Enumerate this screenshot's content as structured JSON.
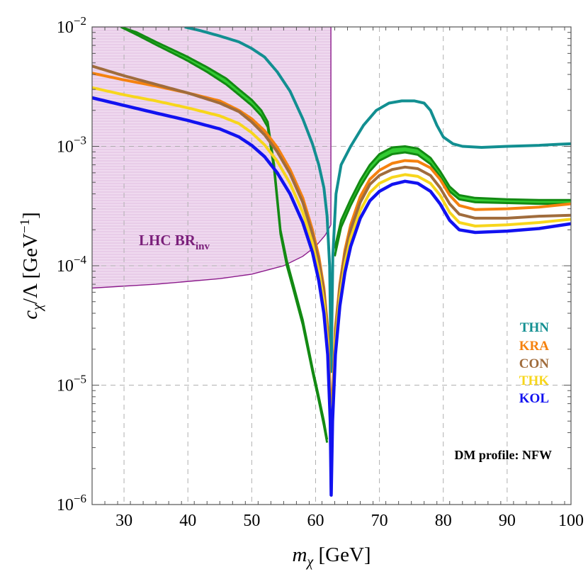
{
  "chart_data": {
    "type": "line",
    "title": "",
    "xlabel": "mχ [GeV]",
    "xlabel_parts": {
      "base": "m",
      "sub": "χ",
      "unit": " [GeV]"
    },
    "ylabel": "cχ/Λ [GeV⁻¹]",
    "ylabel_parts": {
      "base": "c",
      "sub": "χ",
      "rest": "/Λ [GeV",
      "sup": "−1",
      "close": "]"
    },
    "xlim": [
      25,
      100
    ],
    "ylim": [
      1e-06,
      0.01
    ],
    "yscale": "log",
    "grid": true,
    "x_ticks": [
      30,
      40,
      50,
      60,
      70,
      80,
      90,
      100
    ],
    "x_tick_labels": [
      "30",
      "40",
      "50",
      "60",
      "70",
      "80",
      "90",
      "100"
    ],
    "y_ticks": [
      {
        "value": 1e-06,
        "base": "10",
        "exp": "−6"
      },
      {
        "value": 1e-05,
        "base": "10",
        "exp": "−5"
      },
      {
        "value": 0.0001,
        "base": "10",
        "exp": "−4"
      },
      {
        "value": 0.001,
        "base": "10",
        "exp": "−3"
      },
      {
        "value": 0.01,
        "base": "10",
        "exp": "−2"
      }
    ],
    "excluded_region": {
      "label_base": "LHC BR",
      "label_sub": "inv",
      "color": "#8b1a8b",
      "fill": "#e8cfe8",
      "boundary_x": 62.4,
      "lower_boundary": [
        [
          25,
          6.5e-05
        ],
        [
          35,
          7e-05
        ],
        [
          45,
          7.8e-05
        ],
        [
          50,
          8.5e-05
        ],
        [
          55,
          0.0001
        ],
        [
          58,
          0.00012
        ],
        [
          60,
          0.000145
        ],
        [
          61.5,
          0.00018
        ],
        [
          62.4,
          0.00022
        ]
      ]
    },
    "series": [
      {
        "name": "THN",
        "color": "#128f91",
        "width": 4,
        "points": [
          [
            39.5,
            0.01
          ],
          [
            42,
            0.0093
          ],
          [
            45,
            0.0084
          ],
          [
            48,
            0.0075
          ],
          [
            50,
            0.0066
          ],
          [
            52,
            0.0056
          ],
          [
            54,
            0.0042
          ],
          [
            56,
            0.0029
          ],
          [
            58,
            0.0017
          ],
          [
            59.5,
            0.00105
          ],
          [
            60.5,
            0.0007
          ],
          [
            61.3,
            0.00045
          ],
          [
            61.8,
            0.00026
          ],
          [
            62.2,
            0.0001
          ],
          [
            62.45,
            1.3e-05
          ],
          [
            62.7,
            0.00012
          ],
          [
            63.2,
            0.0004
          ],
          [
            64,
            0.0007
          ],
          [
            65.5,
            0.001
          ],
          [
            67.5,
            0.0015
          ],
          [
            69.5,
            0.002
          ],
          [
            71.5,
            0.0023
          ],
          [
            73.5,
            0.0024
          ],
          [
            75.5,
            0.0024
          ],
          [
            77,
            0.0023
          ],
          [
            78,
            0.002
          ],
          [
            79,
            0.0015
          ],
          [
            80,
            0.0012
          ],
          [
            81.5,
            0.00105
          ],
          [
            83,
            0.001
          ],
          [
            86,
            0.00098
          ],
          [
            90,
            0.001
          ],
          [
            95,
            0.00102
          ],
          [
            98,
            0.00104
          ],
          [
            100,
            0.00105
          ]
        ]
      },
      {
        "name": "KRA",
        "color": "#f5820f",
        "width": 4,
        "points": [
          [
            25,
            0.0041
          ],
          [
            30,
            0.0036
          ],
          [
            35,
            0.0032
          ],
          [
            40,
            0.0028
          ],
          [
            45,
            0.0024
          ],
          [
            48,
            0.002
          ],
          [
            50,
            0.0017
          ],
          [
            52,
            0.00135
          ],
          [
            54,
            0.00098
          ],
          [
            56,
            0.00064
          ],
          [
            58,
            0.00037
          ],
          [
            59.5,
            0.0002
          ],
          [
            60.5,
            0.00012
          ],
          [
            61.3,
            6.5e-05
          ],
          [
            61.9,
            3e-05
          ],
          [
            62.3,
            8e-06
          ],
          [
            62.45,
            1.3e-06
          ],
          [
            62.65,
            8e-06
          ],
          [
            63.1,
            3e-05
          ],
          [
            63.8,
            7e-05
          ],
          [
            64.6,
            0.000135
          ],
          [
            65.5,
            0.00022
          ],
          [
            67,
            0.00038
          ],
          [
            68.5,
            0.00053
          ],
          [
            70,
            0.00063
          ],
          [
            72,
            0.00072
          ],
          [
            74,
            0.00076
          ],
          [
            76,
            0.00075
          ],
          [
            78,
            0.00066
          ],
          [
            79.5,
            0.00053
          ],
          [
            81,
            0.00039
          ],
          [
            82.5,
            0.00032
          ],
          [
            85,
            0.000295
          ],
          [
            90,
            0.0003
          ],
          [
            95,
            0.00031
          ],
          [
            100,
            0.00033
          ]
        ]
      },
      {
        "name": "CON",
        "color": "#a06c3c",
        "width": 4,
        "points": [
          [
            25,
            0.0047
          ],
          [
            30,
            0.0039
          ],
          [
            35,
            0.0033
          ],
          [
            40,
            0.0028
          ],
          [
            45,
            0.0023
          ],
          [
            48,
            0.00195
          ],
          [
            50,
            0.0016
          ],
          [
            52,
            0.00125
          ],
          [
            54,
            0.0009
          ],
          [
            56,
            0.00059
          ],
          [
            58,
            0.00034
          ],
          [
            59.5,
            0.000185
          ],
          [
            60.5,
            0.00011
          ],
          [
            61.3,
            6e-05
          ],
          [
            61.9,
            2.7e-05
          ],
          [
            62.3,
            7e-06
          ],
          [
            62.45,
            1.3e-06
          ],
          [
            62.65,
            7e-06
          ],
          [
            63.1,
            2.7e-05
          ],
          [
            63.8,
            6.5e-05
          ],
          [
            64.6,
            0.000125
          ],
          [
            65.5,
            0.0002
          ],
          [
            67,
            0.00034
          ],
          [
            68.5,
            0.00048
          ],
          [
            70,
            0.00057
          ],
          [
            72,
            0.00064
          ],
          [
            74,
            0.00067
          ],
          [
            76,
            0.00065
          ],
          [
            78,
            0.00057
          ],
          [
            79.5,
            0.00045
          ],
          [
            81,
            0.00033
          ],
          [
            82.5,
            0.00027
          ],
          [
            85,
            0.00025
          ],
          [
            90,
            0.00025
          ],
          [
            95,
            0.00026
          ],
          [
            100,
            0.000265
          ]
        ]
      },
      {
        "name": "THK",
        "color": "#f7d61c",
        "width": 4,
        "points": [
          [
            25,
            0.0031
          ],
          [
            30,
            0.0027
          ],
          [
            35,
            0.0024
          ],
          [
            40,
            0.0021
          ],
          [
            45,
            0.0018
          ],
          [
            48,
            0.00155
          ],
          [
            50,
            0.0013
          ],
          [
            52,
            0.00103
          ],
          [
            54,
            0.00075
          ],
          [
            56,
            0.00049
          ],
          [
            58,
            0.00028
          ],
          [
            59.5,
            0.000155
          ],
          [
            60.5,
            9e-05
          ],
          [
            61.3,
            5e-05
          ],
          [
            61.9,
            2.3e-05
          ],
          [
            62.3,
            6e-06
          ],
          [
            62.45,
            1.3e-06
          ],
          [
            62.65,
            6e-06
          ],
          [
            63.1,
            2.3e-05
          ],
          [
            63.8,
            5.5e-05
          ],
          [
            64.6,
            0.000105
          ],
          [
            65.5,
            0.00017
          ],
          [
            67,
            0.00029
          ],
          [
            68.5,
            0.00041
          ],
          [
            70,
            0.00049
          ],
          [
            72,
            0.00055
          ],
          [
            74,
            0.00058
          ],
          [
            76,
            0.00056
          ],
          [
            78,
            0.00049
          ],
          [
            79.5,
            0.00039
          ],
          [
            81,
            0.00028
          ],
          [
            82.5,
            0.00023
          ],
          [
            85,
            0.000215
          ],
          [
            90,
            0.00022
          ],
          [
            95,
            0.00023
          ],
          [
            100,
            0.000245
          ]
        ]
      },
      {
        "name": "KOL",
        "color": "#1212f0",
        "width": 4.5,
        "points": [
          [
            25,
            0.00255
          ],
          [
            30,
            0.0022
          ],
          [
            35,
            0.0019
          ],
          [
            40,
            0.00165
          ],
          [
            45,
            0.0014
          ],
          [
            48,
            0.0012
          ],
          [
            50,
            0.00102
          ],
          [
            52,
            0.00082
          ],
          [
            54,
            0.0006
          ],
          [
            56,
            0.0004
          ],
          [
            58,
            0.00023
          ],
          [
            59.5,
            0.00013
          ],
          [
            60.5,
            7.5e-05
          ],
          [
            61.3,
            4e-05
          ],
          [
            61.9,
            1.8e-05
          ],
          [
            62.3,
            5e-06
          ],
          [
            62.45,
            1.2e-06
          ],
          [
            62.65,
            5e-06
          ],
          [
            63.1,
            1.8e-05
          ],
          [
            63.8,
            4.6e-05
          ],
          [
            64.6,
            8.8e-05
          ],
          [
            65.5,
            0.000145
          ],
          [
            67,
            0.00025
          ],
          [
            68.5,
            0.00035
          ],
          [
            70,
            0.00042
          ],
          [
            72,
            0.00048
          ],
          [
            74,
            0.00051
          ],
          [
            76,
            0.00049
          ],
          [
            78,
            0.00042
          ],
          [
            79.5,
            0.00033
          ],
          [
            81,
            0.00024
          ],
          [
            82.5,
            0.0002
          ],
          [
            85,
            0.00019
          ],
          [
            90,
            0.000195
          ],
          [
            95,
            0.000205
          ],
          [
            100,
            0.000225
          ]
        ]
      }
    ],
    "band_series": {
      "name": "green band",
      "color": "#138a13",
      "fill": "#33cc33",
      "upper": [
        [
          29.5,
          0.01
        ],
        [
          32,
          0.009
        ],
        [
          35,
          0.0075
        ],
        [
          38,
          0.0063
        ],
        [
          40,
          0.0056
        ],
        [
          43,
          0.0046
        ],
        [
          46,
          0.0037
        ],
        [
          48,
          0.003
        ],
        [
          50,
          0.00245
        ],
        [
          51.5,
          0.002
        ],
        [
          52.5,
          0.0016
        ],
        [
          53.5,
          0.0007
        ],
        [
          54.5,
          0.0002
        ],
        [
          55.5,
          0.00011
        ],
        [
          56.5,
          7e-05
        ],
        [
          58,
          3.5e-05
        ],
        [
          59.5,
          1.4e-05
        ],
        [
          60.5,
          8e-06
        ],
        [
          61.3,
          5e-06
        ],
        [
          61.8,
          3.5e-06
        ]
      ],
      "lower": [
        [
          29.5,
          0.01
        ],
        [
          32,
          0.0086
        ],
        [
          35,
          0.0071
        ],
        [
          38,
          0.0059
        ],
        [
          40,
          0.0052
        ],
        [
          43,
          0.0042
        ],
        [
          46,
          0.0033
        ],
        [
          48,
          0.0027
        ],
        [
          50,
          0.0022
        ],
        [
          51.5,
          0.0018
        ],
        [
          52.5,
          0.00145
        ],
        [
          53.5,
          0.00064
        ],
        [
          54.5,
          0.000185
        ],
        [
          55.5,
          0.0001
        ],
        [
          56.5,
          6.4e-05
        ],
        [
          58,
          3.2e-05
        ],
        [
          59.5,
          1.3e-05
        ],
        [
          60.5,
          7.4e-06
        ],
        [
          61.3,
          4.6e-06
        ],
        [
          61.8,
          3.3e-06
        ]
      ],
      "upper_right": [
        [
          63,
          0.00014
        ],
        [
          64,
          0.00024
        ],
        [
          65.5,
          0.00036
        ],
        [
          67,
          0.00052
        ],
        [
          68.5,
          0.0007
        ],
        [
          70,
          0.00086
        ],
        [
          72,
          0.00098
        ],
        [
          74,
          0.001
        ],
        [
          76,
          0.00096
        ],
        [
          78,
          0.0008
        ],
        [
          79.5,
          0.00062
        ],
        [
          81,
          0.00046
        ],
        [
          82.5,
          0.00039
        ],
        [
          85,
          0.00037
        ],
        [
          90,
          0.00036
        ],
        [
          95,
          0.000355
        ],
        [
          100,
          0.000355
        ]
      ],
      "lower_right": [
        [
          63,
          0.00012
        ],
        [
          64,
          0.00021
        ],
        [
          65.5,
          0.00032
        ],
        [
          67,
          0.00046
        ],
        [
          68.5,
          0.00062
        ],
        [
          70,
          0.00076
        ],
        [
          72,
          0.00086
        ],
        [
          74,
          0.00089
        ],
        [
          76,
          0.00085
        ],
        [
          78,
          0.00071
        ],
        [
          79.5,
          0.00056
        ],
        [
          81,
          0.00042
        ],
        [
          82.5,
          0.00036
        ],
        [
          85,
          0.00034
        ],
        [
          90,
          0.000335
        ],
        [
          95,
          0.00033
        ],
        [
          100,
          0.00033
        ]
      ]
    },
    "legend": {
      "placement": "right",
      "entries": [
        {
          "label": "THN",
          "color": "#128f91"
        },
        {
          "label": "KRA",
          "color": "#f5820f"
        },
        {
          "label": "CON",
          "color": "#a06c3c"
        },
        {
          "label": "THK",
          "color": "#f7d61c"
        },
        {
          "label": "KOL",
          "color": "#1212f0"
        }
      ]
    },
    "annotation": "DM profile: NFW"
  }
}
